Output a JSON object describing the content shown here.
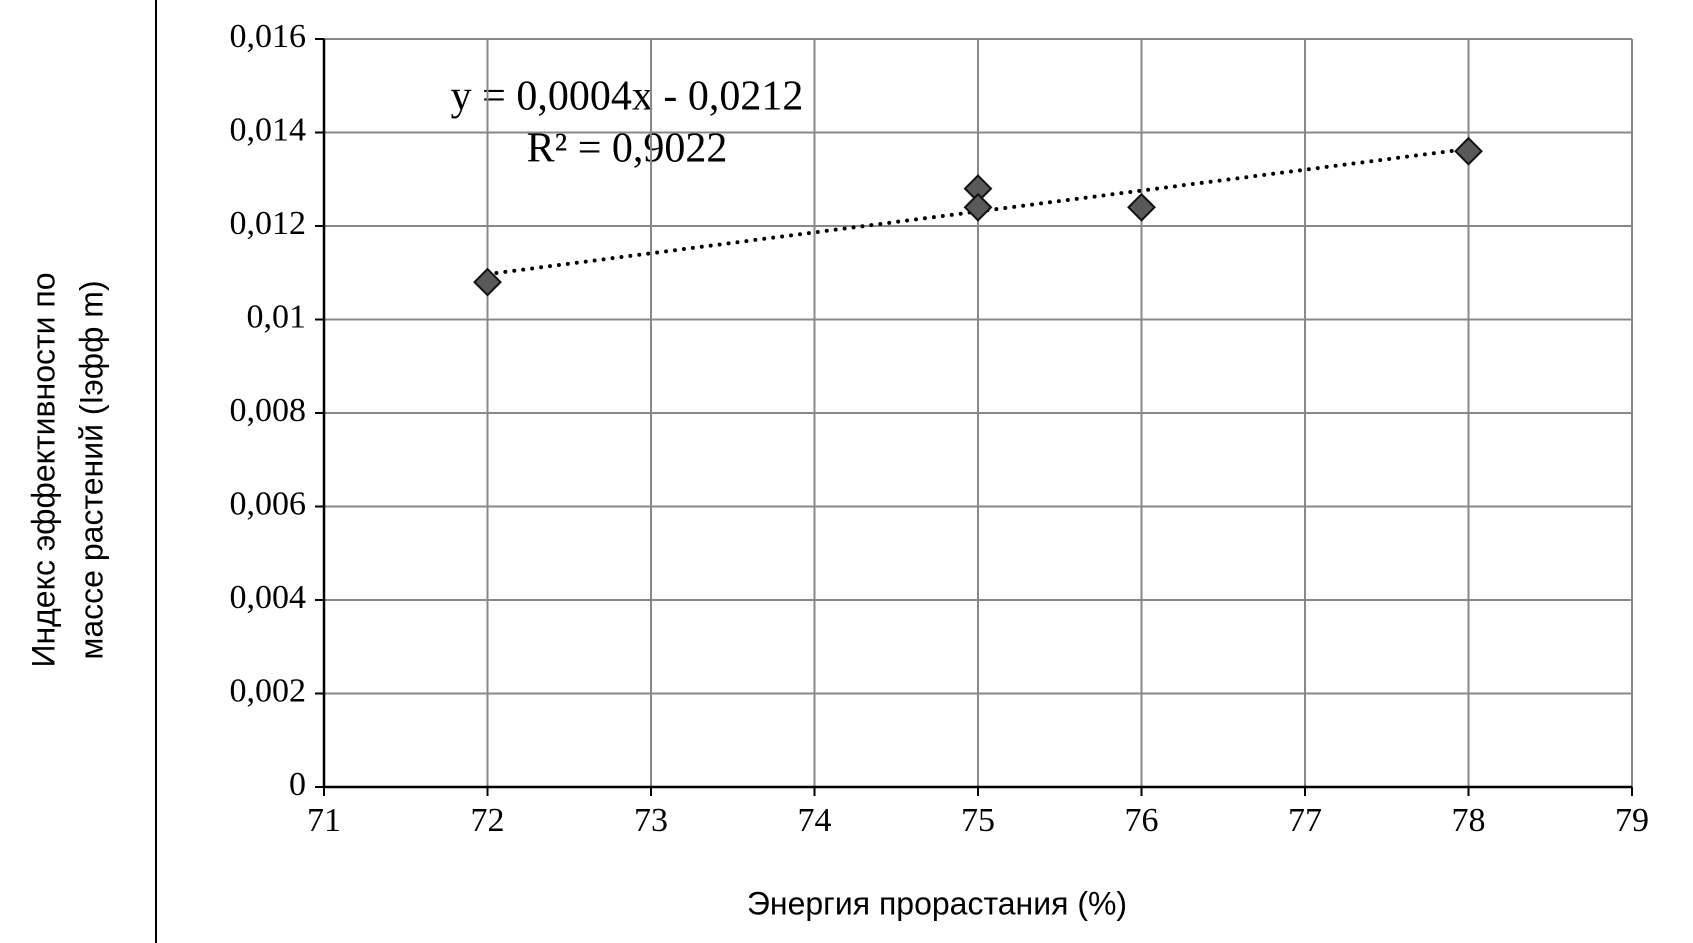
{
  "chart_data": {
    "type": "scatter",
    "x_label": "Энергия прорастания (%)",
    "y_label": [
      "Индекс эффективности по",
      "массе растений (Iэфф m)"
    ],
    "annotations": [
      "y = 0,0004x - 0,0212",
      "R² = 0,9022"
    ],
    "series": [
      {
        "color": "#595959",
        "x": [
          72,
          75,
          75,
          76,
          78
        ],
        "values": [
          0.0108,
          0.0128,
          0.0124,
          0.0124,
          0.0136
        ]
      }
    ],
    "trendline": true,
    "xlim": [
      71,
      79
    ],
    "xticks": [
      71,
      72,
      73,
      74,
      75,
      76,
      77,
      78,
      79
    ],
    "ylim": [
      0,
      0.016
    ],
    "yticks": [
      0,
      {
        "value": 0.002,
        "label": "0,002"
      },
      {
        "value": 0.004,
        "label": "0,004"
      },
      {
        "value": 0.006,
        "label": "0,006"
      },
      {
        "value": 0.008,
        "label": "0,008"
      },
      {
        "value": 0.01,
        "label": "0,01"
      },
      {
        "value": 0.012,
        "label": "0,012"
      },
      {
        "value": 0.014,
        "label": "0,014"
      },
      {
        "value": 0.016,
        "label": "0,016"
      }
    ],
    "grid": true
  }
}
